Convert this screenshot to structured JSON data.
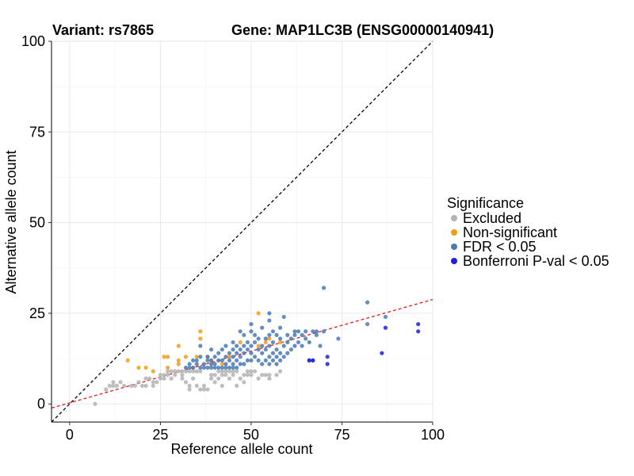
{
  "chart_data": {
    "type": "scatter",
    "title_left": "Variant: rs7865",
    "title_right": "Gene: MAP1LC3B (ENSG00000140941)",
    "xlabel": "Reference allele count",
    "ylabel": "Alternative allele count",
    "xlim": [
      -5,
      100
    ],
    "ylim": [
      -5,
      100
    ],
    "xticks": [
      0,
      25,
      50,
      75,
      100
    ],
    "yticks": [
      0,
      25,
      50,
      75,
      100
    ],
    "grid": true,
    "legend": {
      "title": "Significance",
      "position": "right",
      "entries": [
        {
          "key": "excluded",
          "label": "Excluded",
          "color": "#b3b3b3"
        },
        {
          "key": "nonsig",
          "label": "Non-significant",
          "color": "#f39c12"
        },
        {
          "key": "fdr",
          "label": "FDR < 0.05",
          "color": "#4a7ab5"
        },
        {
          "key": "bonf",
          "label": "Bonferroni P-val < 0.05",
          "color": "#1f1fe0"
        }
      ]
    },
    "reference_lines": [
      {
        "name": "identity",
        "slope": 1,
        "intercept": 0,
        "color": "#000000",
        "dash": "dashed"
      },
      {
        "name": "fit",
        "slope": 0.285,
        "intercept": 0.3,
        "color": "#e41a1c",
        "dash": "dashed"
      }
    ],
    "series": [
      {
        "name": "Excluded",
        "key": "excluded",
        "points": [
          [
            7,
            0
          ],
          [
            10,
            4
          ],
          [
            11,
            5
          ],
          [
            12,
            6
          ],
          [
            12,
            5
          ],
          [
            13,
            5
          ],
          [
            14,
            6
          ],
          [
            15,
            5
          ],
          [
            17,
            5
          ],
          [
            18,
            5
          ],
          [
            19,
            6
          ],
          [
            20,
            5
          ],
          [
            21,
            7
          ],
          [
            21,
            5
          ],
          [
            22,
            7
          ],
          [
            23,
            5
          ],
          [
            23,
            6
          ],
          [
            24,
            6
          ],
          [
            25,
            8
          ],
          [
            25,
            7
          ],
          [
            26,
            8
          ],
          [
            26,
            7
          ],
          [
            27,
            8
          ],
          [
            27,
            9
          ],
          [
            28,
            7
          ],
          [
            28,
            9
          ],
          [
            29,
            8
          ],
          [
            29,
            9
          ],
          [
            30,
            9
          ],
          [
            31,
            8
          ],
          [
            31,
            9
          ],
          [
            31,
            7
          ],
          [
            32,
            9
          ],
          [
            32,
            6
          ],
          [
            33,
            5
          ],
          [
            33,
            4
          ],
          [
            33,
            9
          ],
          [
            34,
            9
          ],
          [
            34,
            7
          ],
          [
            35,
            5
          ],
          [
            35,
            9
          ],
          [
            36,
            4
          ],
          [
            36,
            9
          ],
          [
            37,
            5
          ],
          [
            37,
            4
          ],
          [
            38,
            4
          ],
          [
            39,
            8
          ],
          [
            39,
            7
          ],
          [
            40,
            8
          ],
          [
            40,
            6
          ],
          [
            41,
            9
          ],
          [
            41,
            7
          ],
          [
            42,
            8
          ],
          [
            42,
            9
          ],
          [
            42,
            5
          ],
          [
            43,
            8
          ],
          [
            43,
            9
          ],
          [
            44,
            7
          ],
          [
            44,
            9
          ],
          [
            45,
            8
          ],
          [
            45,
            9
          ],
          [
            46,
            5
          ],
          [
            46,
            9
          ],
          [
            47,
            7
          ],
          [
            48,
            6
          ],
          [
            48,
            8
          ],
          [
            49,
            8
          ],
          [
            49,
            9
          ],
          [
            50,
            9
          ],
          [
            50,
            8
          ],
          [
            51,
            9
          ],
          [
            52,
            7
          ],
          [
            53,
            8
          ],
          [
            54,
            8
          ],
          [
            55,
            7
          ],
          [
            55,
            8
          ],
          [
            57,
            8
          ],
          [
            58,
            9
          ]
        ]
      },
      {
        "name": "Non-significant",
        "key": "nonsig",
        "points": [
          [
            16,
            12
          ],
          [
            19,
            10
          ],
          [
            21,
            10
          ],
          [
            23,
            9
          ],
          [
            26,
            13
          ],
          [
            27,
            13
          ],
          [
            27,
            10
          ],
          [
            30,
            12
          ],
          [
            30,
            11
          ],
          [
            30,
            16
          ],
          [
            32,
            13
          ],
          [
            34,
            10
          ],
          [
            35,
            13
          ],
          [
            36,
            18
          ],
          [
            36,
            20
          ],
          [
            38,
            13
          ],
          [
            39,
            12
          ],
          [
            42,
            11
          ],
          [
            44,
            13
          ],
          [
            47,
            17
          ],
          [
            52,
            16
          ],
          [
            52,
            25
          ],
          [
            54,
            17
          ],
          [
            55,
            18
          ],
          [
            58,
            17
          ]
        ]
      },
      {
        "name": "FDR < 0.05",
        "key": "fdr",
        "points": [
          [
            32,
            10
          ],
          [
            33,
            10
          ],
          [
            33,
            11
          ],
          [
            34,
            12
          ],
          [
            34,
            10
          ],
          [
            35,
            11
          ],
          [
            35,
            12
          ],
          [
            36,
            10
          ],
          [
            36,
            13
          ],
          [
            36,
            16
          ],
          [
            37,
            10
          ],
          [
            37,
            11
          ],
          [
            38,
            10
          ],
          [
            38,
            12
          ],
          [
            38,
            13
          ],
          [
            39,
            10
          ],
          [
            39,
            11
          ],
          [
            39,
            12
          ],
          [
            39,
            15
          ],
          [
            40,
            10
          ],
          [
            40,
            11
          ],
          [
            40,
            13
          ],
          [
            41,
            10
          ],
          [
            41,
            12
          ],
          [
            41,
            14
          ],
          [
            42,
            10
          ],
          [
            42,
            12
          ],
          [
            42,
            15
          ],
          [
            43,
            10
          ],
          [
            43,
            11
          ],
          [
            43,
            13
          ],
          [
            43,
            16
          ],
          [
            44,
            10
          ],
          [
            44,
            12
          ],
          [
            44,
            14
          ],
          [
            45,
            10
          ],
          [
            45,
            11
          ],
          [
            45,
            13
          ],
          [
            45,
            15
          ],
          [
            45,
            17
          ],
          [
            46,
            10
          ],
          [
            46,
            12
          ],
          [
            46,
            14
          ],
          [
            46,
            16
          ],
          [
            47,
            11
          ],
          [
            47,
            13
          ],
          [
            47,
            15
          ],
          [
            47,
            20
          ],
          [
            48,
            11
          ],
          [
            48,
            14
          ],
          [
            48,
            16
          ],
          [
            48,
            19
          ],
          [
            49,
            12
          ],
          [
            49,
            15
          ],
          [
            49,
            17
          ],
          [
            50,
            12
          ],
          [
            50,
            14
          ],
          [
            50,
            16
          ],
          [
            50,
            20
          ],
          [
            50,
            22
          ],
          [
            51,
            13
          ],
          [
            51,
            17
          ],
          [
            51,
            19
          ],
          [
            52,
            12
          ],
          [
            52,
            15
          ],
          [
            52,
            18
          ],
          [
            53,
            11
          ],
          [
            53,
            14
          ],
          [
            53,
            16
          ],
          [
            53,
            21
          ],
          [
            54,
            12
          ],
          [
            54,
            15
          ],
          [
            54,
            18
          ],
          [
            55,
            11
          ],
          [
            55,
            13
          ],
          [
            55,
            16
          ],
          [
            55,
            19
          ],
          [
            55,
            23
          ],
          [
            55,
            25
          ],
          [
            56,
            12
          ],
          [
            56,
            14
          ],
          [
            56,
            17
          ],
          [
            56,
            20
          ],
          [
            57,
            11
          ],
          [
            57,
            13
          ],
          [
            57,
            15
          ],
          [
            57,
            19
          ],
          [
            58,
            12
          ],
          [
            58,
            14
          ],
          [
            58,
            18
          ],
          [
            58,
            21
          ],
          [
            59,
            13
          ],
          [
            59,
            16
          ],
          [
            59,
            24
          ],
          [
            60,
            14
          ],
          [
            60,
            17
          ],
          [
            60,
            19
          ],
          [
            61,
            15
          ],
          [
            61,
            18
          ],
          [
            62,
            16
          ],
          [
            62,
            19
          ],
          [
            62,
            20
          ],
          [
            63,
            17
          ],
          [
            63,
            20
          ],
          [
            64,
            16
          ],
          [
            64,
            19
          ],
          [
            65,
            18
          ],
          [
            65,
            20
          ],
          [
            66,
            17
          ],
          [
            66,
            12
          ],
          [
            67,
            20
          ],
          [
            67,
            12
          ],
          [
            68,
            19
          ],
          [
            68,
            20
          ],
          [
            69,
            16
          ],
          [
            70,
            20
          ],
          [
            70,
            32
          ],
          [
            74,
            18
          ],
          [
            82,
            28
          ],
          [
            82,
            22
          ],
          [
            87,
            24
          ]
        ]
      },
      {
        "name": "Bonferroni P-val < 0.05",
        "key": "bonf",
        "points": [
          [
            66,
            12
          ],
          [
            67,
            12
          ],
          [
            71,
            13
          ],
          [
            71,
            11
          ],
          [
            86,
            14
          ],
          [
            87,
            21
          ],
          [
            96,
            22
          ],
          [
            96,
            20
          ]
        ]
      }
    ]
  }
}
